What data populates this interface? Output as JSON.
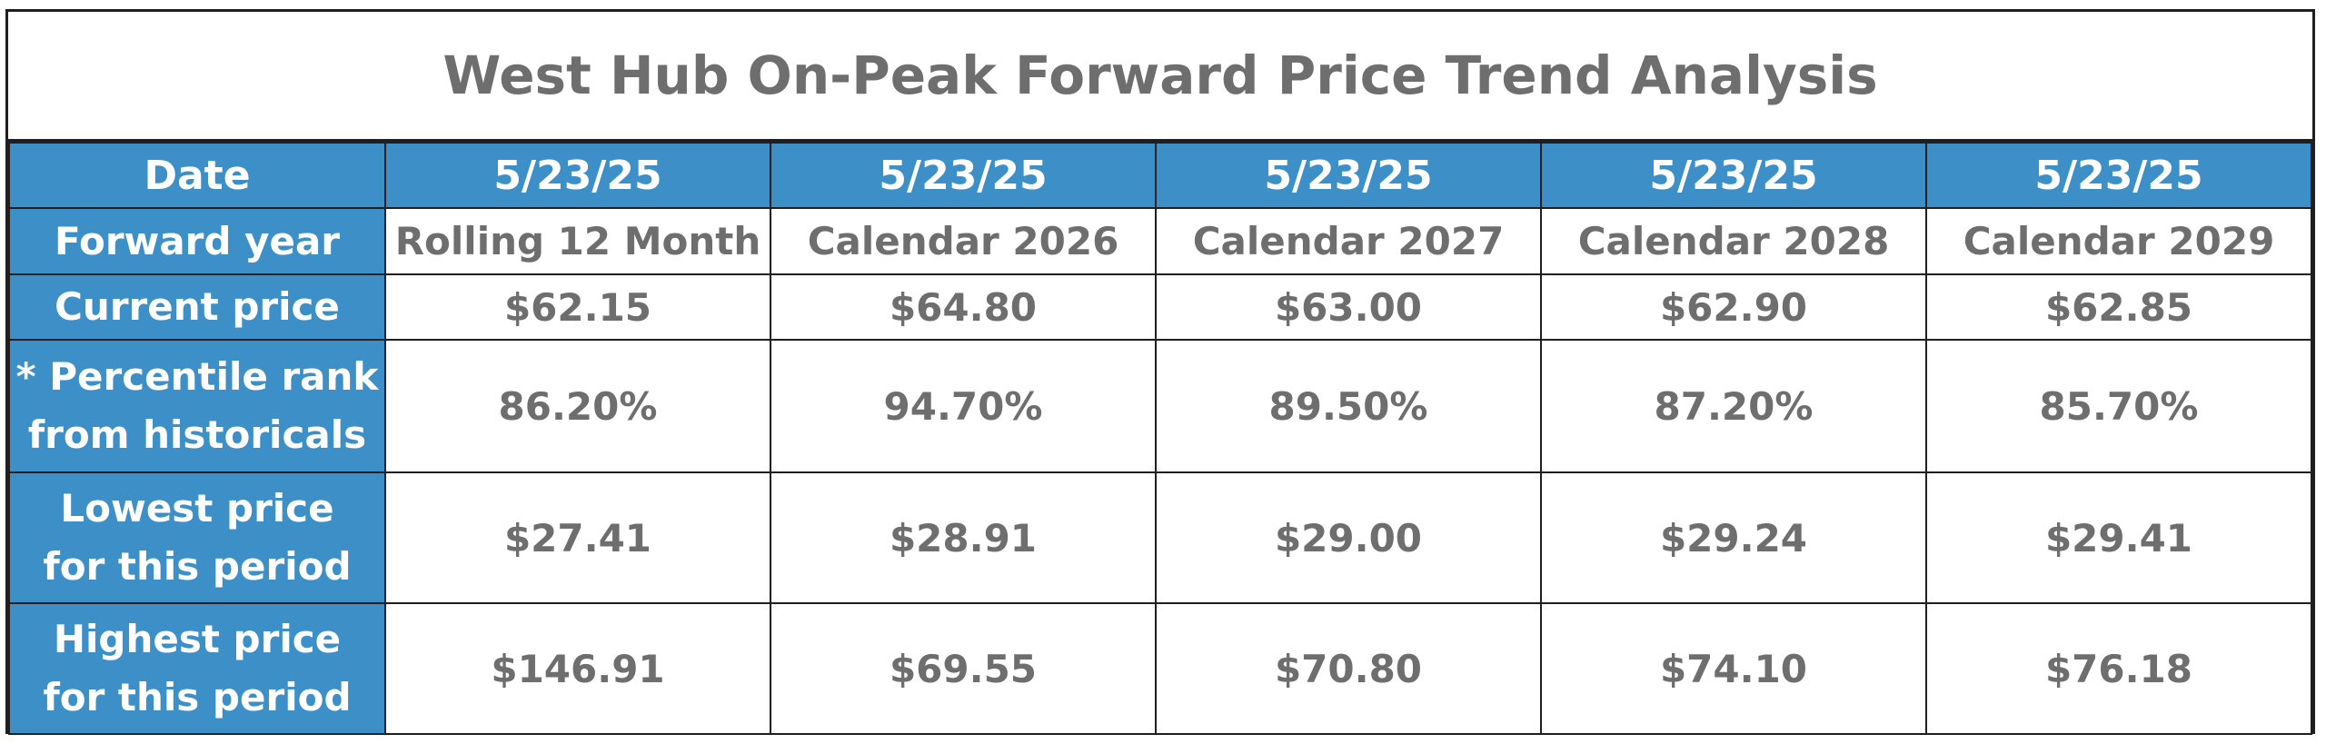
{
  "title": "West Hub On-Peak Forward Price Trend Analysis",
  "table": {
    "row_labels": {
      "date": "Date",
      "forward_year": "Forward year",
      "current_price": "Current price",
      "percentile_line1": "* Percentile rank",
      "percentile_line2": "from historicals",
      "lowest_line1": "Lowest price",
      "lowest_line2": "for this period",
      "highest_line1": "Highest price",
      "highest_line2": "for this period"
    },
    "columns": [
      {
        "date": "5/23/25",
        "forward_year": "Rolling 12 Month",
        "current_price": "$62.15",
        "percentile_rank": "86.20%",
        "lowest_price": "$27.41",
        "highest_price": "$146.91"
      },
      {
        "date": "5/23/25",
        "forward_year": "Calendar 2026",
        "current_price": "$64.80",
        "percentile_rank": "94.70%",
        "lowest_price": "$28.91",
        "highest_price": "$69.55"
      },
      {
        "date": "5/23/25",
        "forward_year": "Calendar 2027",
        "current_price": "$63.00",
        "percentile_rank": "89.50%",
        "lowest_price": "$29.00",
        "highest_price": "$70.80"
      },
      {
        "date": "5/23/25",
        "forward_year": "Calendar 2028",
        "current_price": "$62.90",
        "percentile_rank": "87.20%",
        "lowest_price": "$29.24",
        "highest_price": "$74.10"
      },
      {
        "date": "5/23/25",
        "forward_year": "Calendar 2029",
        "current_price": "$62.85",
        "percentile_rank": "85.70%",
        "lowest_price": "$29.41",
        "highest_price": "$76.18"
      }
    ]
  },
  "colors": {
    "header_blue": "#3d8fc7",
    "value_gray": "#6e6e6e",
    "border": "#1f1f1f"
  }
}
